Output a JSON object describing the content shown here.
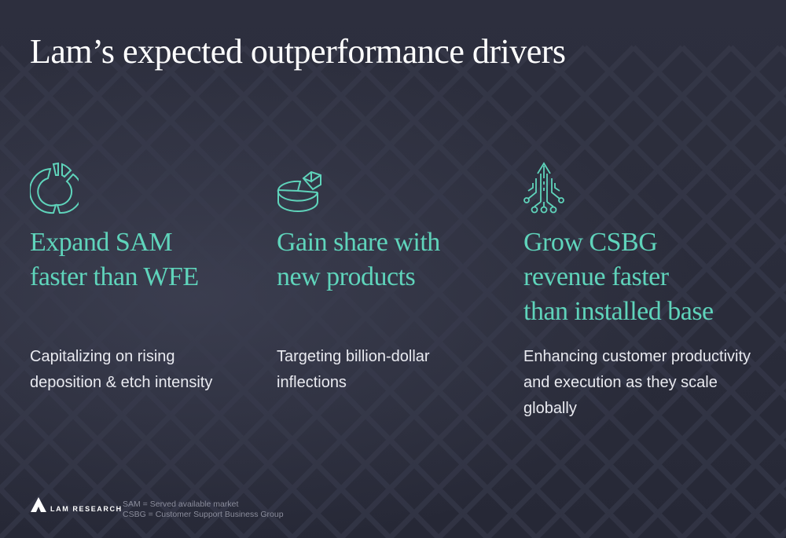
{
  "title": "Lam’s expected outperformance drivers",
  "columns": [
    {
      "icon": "pie-chart-segments-icon",
      "heading_lines": [
        "Expand SAM",
        "faster than WFE"
      ],
      "body_lines": [
        "Capitalizing on rising",
        "deposition & etch intensity"
      ]
    },
    {
      "icon": "3d-pie-chart-icon",
      "heading_lines": [
        "Gain share with",
        "new products"
      ],
      "body_lines": [
        "Targeting billion-dollar",
        "inflections"
      ]
    },
    {
      "icon": "circuit-arrow-up-icon",
      "heading_lines": [
        "Grow CSBG",
        "revenue faster",
        "than installed base"
      ],
      "body_lines": [
        "Enhancing customer productivity",
        "and execution as they scale",
        "globally"
      ]
    }
  ],
  "footer": {
    "brand": "LAM RESEARCH",
    "footnotes": [
      "SAM = Served available market",
      "CSBG = Customer Support Business Group"
    ]
  },
  "colors": {
    "accent": "#5fd4bb",
    "background": "#2b2d3b",
    "text": "#ffffff"
  }
}
